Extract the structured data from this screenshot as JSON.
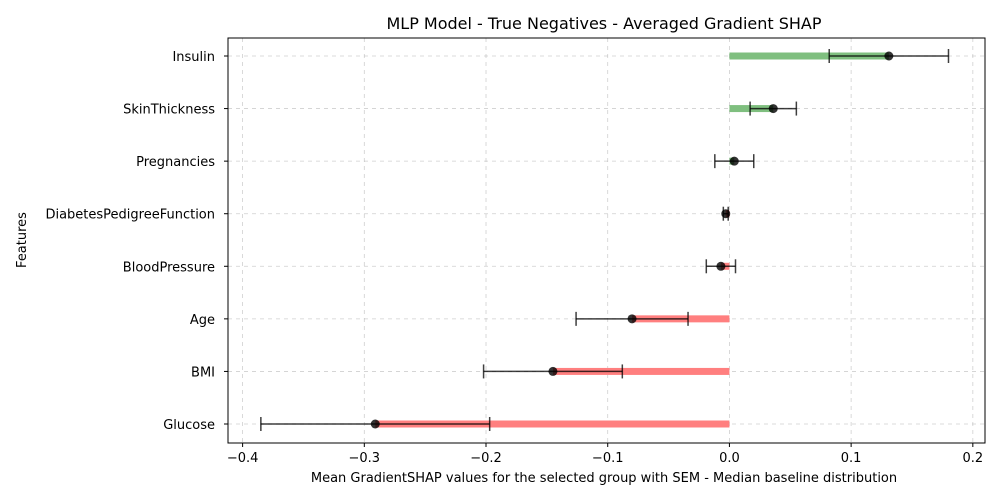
{
  "chart_data": {
    "type": "bar",
    "orientation": "horizontal",
    "title": "MLP Model - True Negatives - Averaged Gradient SHAP",
    "xlabel": "Mean GradientSHAP values for the selected group with SEM - Median baseline distribution",
    "ylabel": "Features",
    "xlim": [
      -0.412,
      0.21
    ],
    "xticks": [
      -0.4,
      -0.3,
      -0.2,
      -0.1,
      0.0,
      0.1,
      0.2
    ],
    "xtick_labels": [
      "−0.4",
      "−0.3",
      "−0.2",
      "−0.1",
      "0.0",
      "0.1",
      "0.2"
    ],
    "grid": true,
    "colors": {
      "positive": "#7fbf7f",
      "negative": "#ff7f7f",
      "point": "#000000"
    },
    "categories": [
      "Insulin",
      "SkinThickness",
      "Pregnancies",
      "DiabetesPedigreeFunction",
      "BloodPressure",
      "Age",
      "BMI",
      "Glucose"
    ],
    "values": [
      0.131,
      0.036,
      0.004,
      -0.003,
      -0.007,
      -0.08,
      -0.145,
      -0.291
    ],
    "sem": [
      0.049,
      0.019,
      0.016,
      0.002,
      0.012,
      0.046,
      0.057,
      0.094
    ]
  }
}
